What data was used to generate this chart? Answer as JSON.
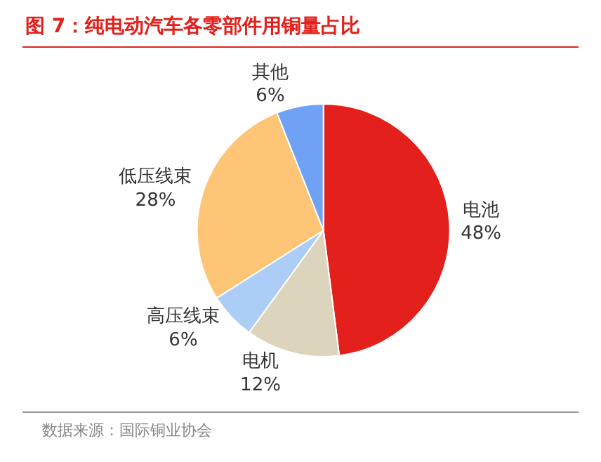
{
  "chart_data": {
    "type": "pie",
    "title": "图 7：纯电动汽车各零部件用铜量占比",
    "categories": [
      "电池",
      "电机",
      "高压线束",
      "低压线束",
      "其他"
    ],
    "values": [
      48,
      12,
      6,
      28,
      6
    ],
    "value_labels": [
      "48%",
      "12%",
      "6%",
      "28%",
      "6%"
    ],
    "colors": [
      "#e3201b",
      "#ddd4bd",
      "#abcdf6",
      "#fdc575",
      "#6fa2f5"
    ],
    "annotations": [
      "数据来源：国际铜业协会"
    ],
    "legend": false
  }
}
